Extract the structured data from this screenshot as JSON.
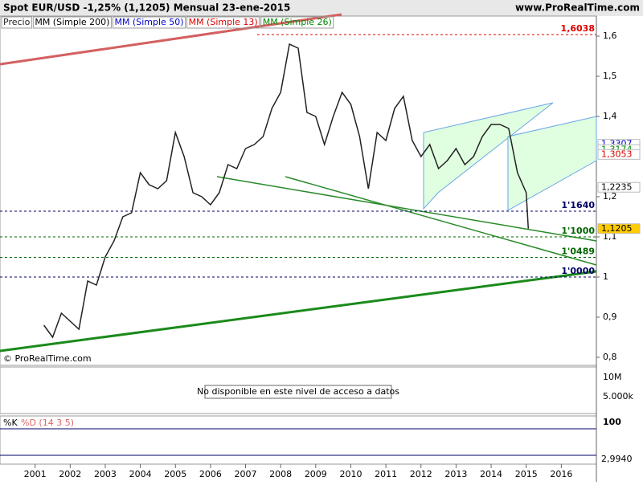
{
  "header": {
    "title": "Spot EUR/USD  -1,25% (1,1205)  Mensual  23-ene-2015",
    "site": "www.ProRealTime.com",
    "copyright": "© ProRealTime.com"
  },
  "chart_data": {
    "type": "line",
    "indicators": [
      {
        "name": "MM (Simple 200)",
        "color": "#000000"
      },
      {
        "name": "MM (Simple 50)",
        "color": "#0000cc"
      },
      {
        "name": "MM (Simple 13)",
        "color": "#dd0000"
      },
      {
        "name": "MM (Simple 26)",
        "color": "#008800"
      }
    ],
    "x": [
      2001.25,
      2001.5,
      2001.75,
      2002.0,
      2002.25,
      2002.5,
      2002.75,
      2003.0,
      2003.25,
      2003.5,
      2003.75,
      2004.0,
      2004.25,
      2004.5,
      2004.75,
      2005.0,
      2005.25,
      2005.5,
      2005.75,
      2006.0,
      2006.25,
      2006.5,
      2006.75,
      2007.0,
      2007.25,
      2007.5,
      2007.75,
      2008.0,
      2008.25,
      2008.5,
      2008.75,
      2009.0,
      2009.25,
      2009.5,
      2009.75,
      2010.0,
      2010.25,
      2010.5,
      2010.75,
      2011.0,
      2011.25,
      2011.5,
      2011.75,
      2012.0,
      2012.25,
      2012.5,
      2012.75,
      2013.0,
      2013.25,
      2013.5,
      2013.75,
      2014.0,
      2014.25,
      2014.5,
      2014.75,
      2015.0,
      2015.06
    ],
    "series": [
      {
        "name": "Precio",
        "color": "#222222",
        "values": [
          0.88,
          0.85,
          0.91,
          0.89,
          0.87,
          0.99,
          0.98,
          1.05,
          1.09,
          1.15,
          1.16,
          1.26,
          1.23,
          1.22,
          1.24,
          1.36,
          1.3,
          1.21,
          1.2,
          1.18,
          1.21,
          1.28,
          1.27,
          1.32,
          1.33,
          1.35,
          1.42,
          1.46,
          1.58,
          1.57,
          1.41,
          1.4,
          1.33,
          1.4,
          1.46,
          1.43,
          1.35,
          1.22,
          1.36,
          1.34,
          1.42,
          1.45,
          1.34,
          1.3,
          1.33,
          1.27,
          1.29,
          1.32,
          1.28,
          1.3,
          1.35,
          1.38,
          1.38,
          1.37,
          1.26,
          1.21,
          1.1205
        ]
      }
    ],
    "xlim": [
      2000,
      2017
    ],
    "xticks": [
      2001,
      2002,
      2003,
      2004,
      2005,
      2006,
      2007,
      2008,
      2009,
      2010,
      2011,
      2012,
      2013,
      2014,
      2015,
      2016
    ],
    "ylim": [
      0.78,
      1.61
    ],
    "yticks": [
      {
        "value": 1.6,
        "label": "1,6"
      },
      {
        "value": 1.5,
        "label": "1,5"
      },
      {
        "value": 1.4,
        "label": "1,4"
      },
      {
        "value": 1.2,
        "label": "1,2"
      },
      {
        "value": 1.1,
        "label": "1,1"
      },
      1,
      {
        "value": 0.9,
        "label": "0,9"
      },
      {
        "value": 0.8,
        "label": "0,8"
      }
    ],
    "levels": [
      {
        "value": 1.6038,
        "label": "1,6038",
        "color": "#dd0000"
      },
      {
        "value": 1.164,
        "label": "1'1640",
        "color": "#000066"
      },
      {
        "value": 1.1,
        "label": "1'1000",
        "color": "#006600"
      },
      {
        "value": 1.0489,
        "label": "1'0489",
        "color": "#006600"
      },
      {
        "value": 1.0,
        "label": "1'0000",
        "color": "#000066"
      }
    ],
    "price_tags": [
      {
        "value": 1.3307,
        "label": "1,3307",
        "color": "#0000cc"
      },
      {
        "value": 1.3174,
        "label": "1,3174",
        "color": "#008800"
      },
      {
        "value": 1.3053,
        "label": "1,3053",
        "color": "#dd0000"
      },
      {
        "value": 1.2235,
        "label": "1,2235",
        "color": "#000000"
      },
      {
        "value": 1.1205,
        "label": "1,1205",
        "color": "#000000"
      }
    ],
    "volume": {
      "ticks": [
        "10M",
        "5.000k"
      ],
      "message": "No disponible en este nivel de acceso a datos"
    },
    "stochastic": {
      "k_label": "%K",
      "d_label": "%D (14 3 5)",
      "top_label": "100",
      "last_label": "2,9940"
    }
  }
}
